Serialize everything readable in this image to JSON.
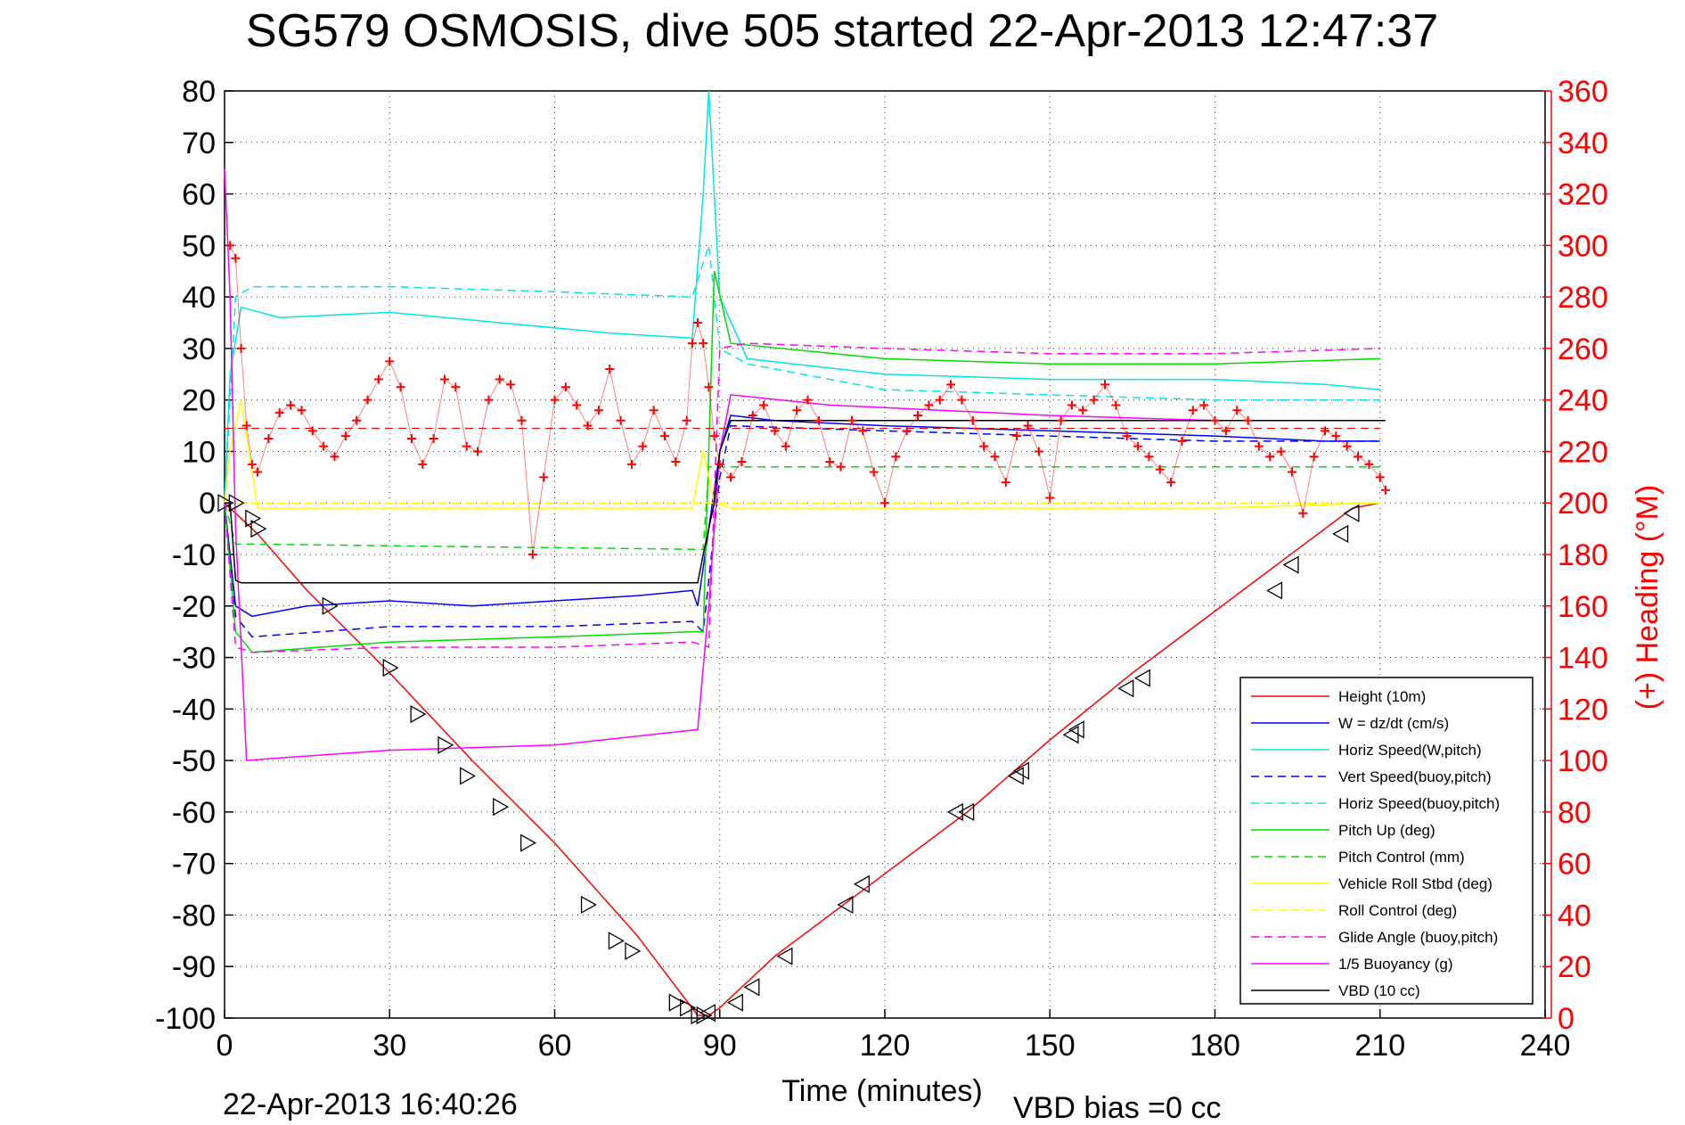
{
  "chart_data": {
    "type": "line",
    "title": "SG579 OSMOSIS, dive 505 started 22-Apr-2013 12:47:37",
    "xlabel": "Time (minutes)",
    "ylabel_right": "(+) Heading (°M)",
    "xlim": [
      0,
      240
    ],
    "ylim": [
      -100,
      80
    ],
    "ylim_right": [
      0,
      360
    ],
    "xticks": [
      "0",
      "30",
      "60",
      "90",
      "120",
      "150",
      "180",
      "210",
      "240"
    ],
    "yticks": [
      "80",
      "70",
      "60",
      "50",
      "40",
      "30",
      "20",
      "10",
      "0",
      "-10",
      "-20",
      "-30",
      "-40",
      "-50",
      "-60",
      "-70",
      "-80",
      "-90",
      "-100"
    ],
    "yticks_right": [
      "360",
      "340",
      "320",
      "300",
      "280",
      "260",
      "240",
      "220",
      "200",
      "180",
      "160",
      "140",
      "120",
      "100",
      "80",
      "60",
      "40",
      "20",
      "0"
    ],
    "grid": true,
    "legend_position": "bottom-right",
    "footer_left": "22-Apr-2013 16:40:26",
    "footer_right": "VBD bias =0 cc",
    "heading_mean": 229,
    "series": [
      {
        "name": "Height (10m)",
        "color": "#ff0000",
        "style": "solid",
        "x": [
          0,
          2,
          6,
          15,
          30,
          45,
          60,
          75,
          86,
          88,
          90,
          100,
          115,
          135,
          150,
          165,
          180,
          195,
          205,
          210
        ],
        "y": [
          0,
          -2,
          -6,
          -17,
          -33,
          -50,
          -66,
          -84,
          -99.5,
          -99.5,
          -98,
          -88,
          -76,
          -60,
          -46,
          -33,
          -21,
          -9,
          -1,
          0
        ]
      },
      {
        "name": "W = dz/dt (cm/s)",
        "color": "#0000ff",
        "style": "solid",
        "x": [
          0,
          1,
          2,
          5,
          15,
          30,
          45,
          60,
          75,
          85,
          86,
          88,
          90,
          92,
          100,
          120,
          150,
          180,
          200,
          210
        ],
        "y": [
          0,
          -10,
          -20,
          -22,
          -20,
          -19,
          -20,
          -19,
          -18,
          -17,
          -20,
          -5,
          10,
          17,
          16,
          15,
          14,
          13,
          12,
          12
        ]
      },
      {
        "name": "Horiz Speed(W,pitch)",
        "color": "#00e5e5",
        "style": "solid",
        "x": [
          0,
          1,
          3,
          10,
          30,
          50,
          70,
          85,
          87,
          88,
          90,
          95,
          120,
          150,
          180,
          200,
          210
        ],
        "y": [
          0,
          25,
          38,
          36,
          37,
          35,
          33,
          32,
          60,
          80,
          40,
          28,
          25,
          24,
          24,
          23,
          22
        ]
      },
      {
        "name": "Vert Speed(buoy,pitch)",
        "color": "#0000ff",
        "style": "dashed",
        "x": [
          0,
          2,
          5,
          30,
          60,
          85,
          87,
          90,
          92,
          120,
          150,
          180,
          210
        ],
        "y": [
          0,
          -22,
          -26,
          -24,
          -24,
          -23,
          -25,
          5,
          15,
          14,
          13,
          12,
          12
        ]
      },
      {
        "name": "Horiz Speed(buoy,pitch)",
        "color": "#00e5e5",
        "style": "dashed",
        "x": [
          0,
          2,
          5,
          30,
          60,
          85,
          88,
          90,
          95,
          120,
          150,
          180,
          210
        ],
        "y": [
          0,
          40,
          42,
          42,
          41,
          40,
          50,
          30,
          27,
          22,
          21,
          20,
          20
        ]
      },
      {
        "name": "Pitch Up (deg)",
        "color": "#00dd00",
        "style": "solid",
        "x": [
          0,
          2,
          5,
          30,
          60,
          85,
          87,
          89,
          92,
          120,
          150,
          180,
          210
        ],
        "y": [
          0,
          -25,
          -29,
          -27,
          -26,
          -25,
          -25,
          45,
          31,
          28,
          27,
          27,
          28
        ]
      },
      {
        "name": "Pitch Control (mm)",
        "color": "#00dd00",
        "style": "dashed",
        "x": [
          0,
          2,
          5,
          85,
          87,
          88,
          92,
          210
        ],
        "y": [
          0,
          -8,
          -8,
          -9,
          -9,
          7,
          7,
          7
        ]
      },
      {
        "name": "Vehicle Roll Stbd (deg)",
        "color": "#ffff00",
        "style": "solid",
        "x": [
          0,
          1,
          3,
          6,
          30,
          60,
          85,
          87,
          89,
          92,
          120,
          150,
          180,
          210
        ],
        "y": [
          0,
          10,
          20,
          -1,
          -1,
          -1,
          -1,
          10,
          0,
          -1,
          -1,
          -1,
          -1,
          0
        ]
      },
      {
        "name": "Roll Control (deg)",
        "color": "#ffff00",
        "style": "dashed",
        "x": [
          0,
          210
        ],
        "y": [
          0,
          0
        ]
      },
      {
        "name": "Glide Angle (buoy,pitch)",
        "color": "#ff00ff",
        "style": "dashed",
        "x": [
          0,
          2,
          5,
          30,
          60,
          85,
          88,
          90,
          95,
          120,
          150,
          180,
          210
        ],
        "y": [
          0,
          -28,
          -29,
          -28,
          -28,
          -27,
          -28,
          30,
          31,
          30,
          29,
          29,
          30
        ]
      },
      {
        "name": "1/5 Buoyancy (g)",
        "color": "#ff00ff",
        "style": "solid",
        "x": [
          0,
          1,
          2,
          4,
          10,
          30,
          60,
          86,
          88,
          90,
          92,
          110,
          130,
          150,
          180,
          210
        ],
        "y": [
          65,
          40,
          -5,
          -50,
          -49.5,
          -48,
          -47,
          -44,
          -20,
          10,
          21,
          19,
          18,
          17,
          16,
          16
        ]
      },
      {
        "name": "VBD (10 cc)",
        "color": "#000000",
        "style": "solid",
        "x": [
          0,
          1,
          2,
          3,
          86,
          87,
          89,
          90,
          92,
          210,
          211
        ],
        "y": [
          0,
          0,
          -15,
          -15.5,
          -15.5,
          -10,
          0,
          10,
          16,
          16,
          16
        ]
      }
    ],
    "heading": {
      "name": "Heading",
      "color": "#ff0000",
      "marker": "+",
      "x": [
        1,
        2,
        3,
        4,
        5,
        6,
        8,
        10,
        12,
        14,
        16,
        18,
        20,
        22,
        24,
        26,
        28,
        30,
        32,
        34,
        36,
        38,
        40,
        42,
        44,
        46,
        48,
        50,
        52,
        54,
        56,
        58,
        60,
        62,
        64,
        66,
        68,
        70,
        72,
        74,
        76,
        78,
        80,
        82,
        84,
        85,
        86,
        87,
        88,
        89,
        90,
        92,
        94,
        96,
        98,
        100,
        102,
        104,
        106,
        108,
        110,
        112,
        114,
        116,
        118,
        120,
        122,
        124,
        126,
        128,
        130,
        132,
        134,
        136,
        138,
        140,
        142,
        144,
        146,
        148,
        150,
        152,
        154,
        156,
        158,
        160,
        162,
        164,
        166,
        168,
        170,
        172,
        174,
        176,
        178,
        180,
        182,
        184,
        186,
        188,
        190,
        192,
        194,
        196,
        198,
        200,
        202,
        204,
        206,
        208,
        210,
        211
      ],
      "y": [
        300,
        295,
        260,
        230,
        215,
        212,
        225,
        235,
        238,
        236,
        228,
        222,
        218,
        226,
        232,
        240,
        248,
        255,
        245,
        225,
        215,
        225,
        248,
        245,
        222,
        220,
        240,
        248,
        246,
        232,
        180,
        210,
        240,
        245,
        238,
        230,
        236,
        252,
        232,
        215,
        222,
        236,
        226,
        216,
        232,
        262,
        270,
        262,
        245,
        226,
        215,
        210,
        216,
        234,
        238,
        228,
        222,
        236,
        240,
        232,
        216,
        214,
        232,
        228,
        212,
        200,
        218,
        228,
        234,
        238,
        240,
        246,
        240,
        232,
        222,
        218,
        208,
        226,
        230,
        220,
        202,
        232,
        238,
        236,
        240,
        246,
        238,
        226,
        222,
        218,
        213,
        208,
        224,
        236,
        238,
        232,
        228,
        236,
        232,
        222,
        218,
        220,
        212,
        196,
        218,
        228,
        226,
        222,
        218,
        215,
        210,
        205
      ]
    },
    "dive_markers": {
      "marker": "triangle",
      "x": [
        0,
        2,
        5,
        6,
        19,
        30,
        35,
        40,
        44,
        50,
        55,
        66,
        71,
        74,
        82,
        84,
        86,
        87,
        88,
        93,
        96,
        102,
        113,
        116,
        133,
        135,
        144,
        145,
        154,
        155,
        164,
        167,
        191,
        194,
        203,
        205
      ],
      "y": [
        0,
        0,
        -3,
        -5,
        -20,
        -32,
        -41,
        -47,
        -53,
        -59,
        -66,
        -78,
        -85,
        -87,
        -97,
        -98,
        -99.5,
        -99.5,
        -99,
        -97,
        -94,
        -88,
        -78,
        -74,
        -60,
        -60,
        -53,
        -52,
        -45,
        -44,
        -36,
        -34,
        -17,
        -12,
        -6,
        -2
      ]
    }
  }
}
